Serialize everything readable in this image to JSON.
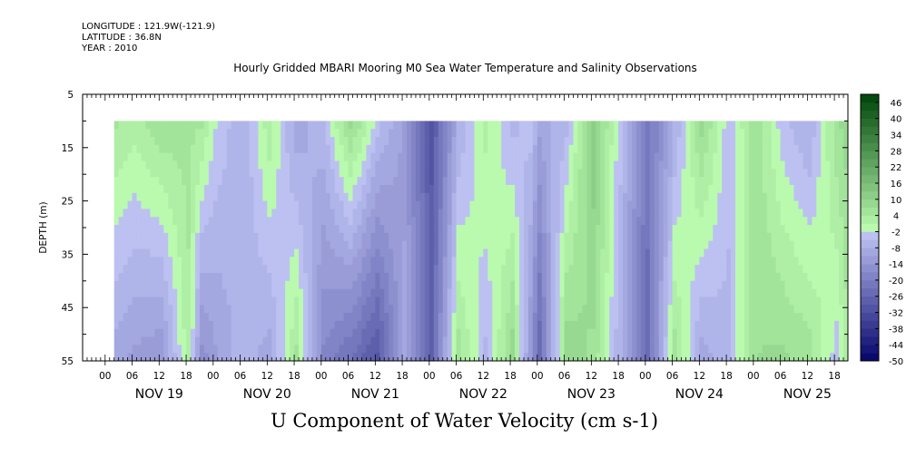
{
  "chart_data": {
    "type": "heatmap",
    "meta": {
      "longitude": "LONGITUDE : 121.9W(-121.9)",
      "latitude": "LATITUDE : 36.8N",
      "year": "YEAR : 2010"
    },
    "title": "Hourly Gridded MBARI Mooring M0 Sea Water Temperature and Salinity Observations",
    "variable_label": "U Component of Water Velocity (cm s-1)",
    "ylabel": "DEPTH (m)",
    "y_ticks": [
      5,
      15,
      25,
      35,
      45,
      55
    ],
    "ylim": [
      5,
      55
    ],
    "y_inverted": true,
    "data_depth_range": [
      10,
      55
    ],
    "x_hour_labels": [
      "00",
      "06",
      "12",
      "18",
      "00",
      "06",
      "12",
      "18",
      "00",
      "06",
      "12",
      "18",
      "00",
      "06",
      "12",
      "18",
      "00",
      "06",
      "12",
      "18",
      "00",
      "06",
      "12",
      "18",
      "00",
      "06",
      "12",
      "18"
    ],
    "x_hour_values": [
      0,
      6,
      12,
      18,
      24,
      30,
      36,
      42,
      48,
      54,
      60,
      66,
      72,
      78,
      84,
      90,
      96,
      102,
      108,
      114,
      120,
      126,
      132,
      138,
      144,
      150,
      156,
      162
    ],
    "x_day_labels": [
      "NOV 19",
      "NOV 20",
      "NOV 21",
      "NOV 22",
      "NOV 23",
      "NOV 24",
      "NOV 25"
    ],
    "xlim_hours": [
      -5,
      165
    ],
    "data_start_hours": 2,
    "colorbar_labels": [
      "46",
      "40",
      "34",
      "28",
      "22",
      "16",
      "10",
      "4",
      "-2",
      "-8",
      "-14",
      "-20",
      "-26",
      "-32",
      "-38",
      "-44",
      "-50"
    ],
    "colorbar_levels": [
      -50,
      -47,
      -44,
      -41,
      -38,
      -35,
      -32,
      -29,
      -26,
      -23,
      -20,
      -17,
      -14,
      -11,
      -8,
      -5,
      -2,
      1,
      4,
      7,
      10,
      13,
      16,
      19,
      22,
      25,
      28,
      31,
      34,
      37,
      40,
      43,
      46,
      49
    ],
    "column_profiles": [
      {
        "t": 2,
        "top": 4,
        "bottom": -10
      },
      {
        "t": 6,
        "top": 2,
        "bottom": -12
      },
      {
        "t": 12,
        "top": 6,
        "bottom": -14
      },
      {
        "t": 18,
        "top": 5,
        "bottom": 3
      },
      {
        "t": 21,
        "top": 4,
        "bottom": -16
      },
      {
        "t": 24,
        "top": -2,
        "bottom": -12
      },
      {
        "t": 30,
        "top": -8,
        "bottom": -6
      },
      {
        "t": 36,
        "top": 3,
        "bottom": -10
      },
      {
        "t": 42,
        "top": -10,
        "bottom": 5
      },
      {
        "t": 48,
        "top": -6,
        "bottom": -18
      },
      {
        "t": 54,
        "top": 8,
        "bottom": -24
      },
      {
        "t": 60,
        "top": -4,
        "bottom": -30
      },
      {
        "t": 66,
        "top": -12,
        "bottom": -10
      },
      {
        "t": 72,
        "top": -30,
        "bottom": -26
      },
      {
        "t": 78,
        "top": -8,
        "bottom": 6
      },
      {
        "t": 84,
        "top": 2,
        "bottom": -6
      },
      {
        "t": 90,
        "top": -6,
        "bottom": 9
      },
      {
        "t": 94,
        "top": -4,
        "bottom": -14
      },
      {
        "t": 96,
        "top": -10,
        "bottom": -26
      },
      {
        "t": 102,
        "top": -6,
        "bottom": 10
      },
      {
        "t": 108,
        "top": 12,
        "bottom": 6
      },
      {
        "t": 114,
        "top": -4,
        "bottom": -8
      },
      {
        "t": 120,
        "top": -22,
        "bottom": -24
      },
      {
        "t": 126,
        "top": -8,
        "bottom": 6
      },
      {
        "t": 132,
        "top": 8,
        "bottom": -10
      },
      {
        "t": 138,
        "top": -4,
        "bottom": -6
      },
      {
        "t": 144,
        "top": 6,
        "bottom": 7
      },
      {
        "t": 150,
        "top": -4,
        "bottom": 8
      },
      {
        "t": 156,
        "top": -8,
        "bottom": 6
      },
      {
        "t": 162,
        "top": 6,
        "bottom": -4
      },
      {
        "t": 164,
        "top": 8,
        "bottom": 2
      }
    ]
  }
}
